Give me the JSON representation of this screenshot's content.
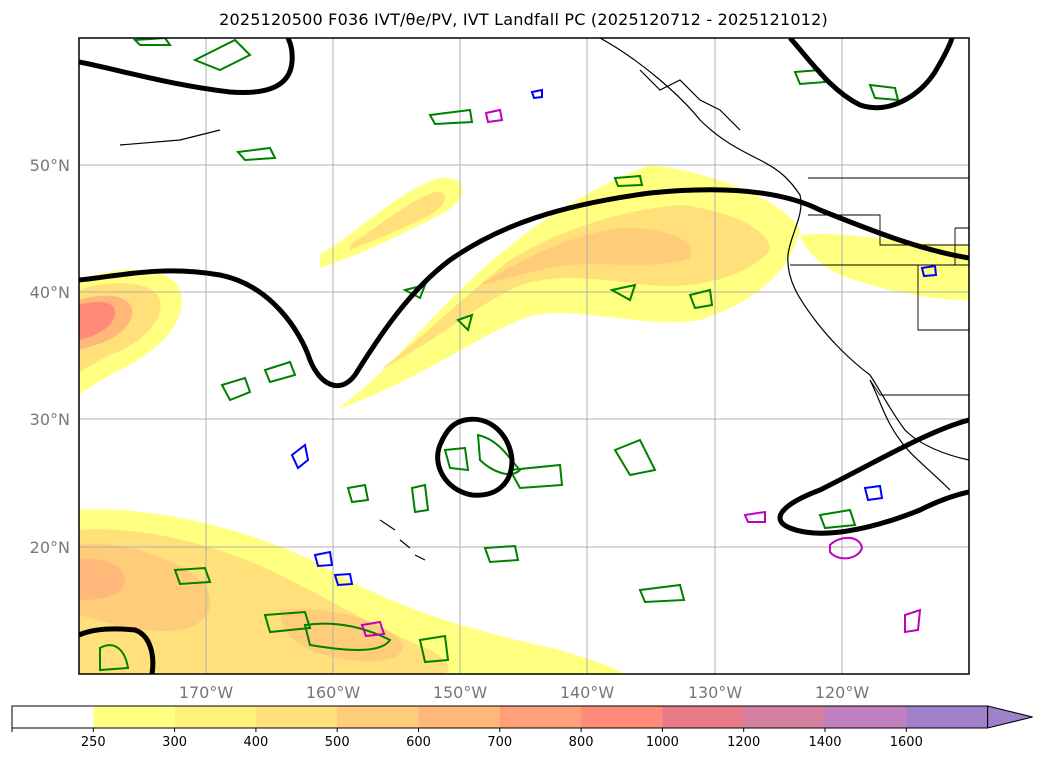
{
  "title": "2025120500 F036 IVT/θe/PV, IVT Landfall PC (2025120712 - 2025121012)",
  "latitude_labels": [
    "50°N",
    "40°N",
    "30°N",
    "20°N"
  ],
  "longitude_labels": [
    "170°W",
    "160°W",
    "150°W",
    "140°W",
    "130°W",
    "120°W"
  ],
  "colorbar": {
    "ticks": [
      "250",
      "300",
      "400",
      "500",
      "600",
      "700",
      "800",
      "1000",
      "1200",
      "1400",
      "1600"
    ],
    "colors": [
      "#ffffff",
      "#ffff80",
      "#fff27a",
      "#ffe07a",
      "#ffcc7a",
      "#ffb87a",
      "#ffa07a",
      "#ff8a7a",
      "#e87a8a",
      "#d480a0",
      "#c080c0",
      "#a080c8"
    ],
    "extend": "max"
  },
  "style": {
    "pc_contour_color": "#000000",
    "theta_contour_color": "#008000",
    "pv_contour_color_a": "#0000ff",
    "pv_contour_color_b": "#c000c0",
    "coastline_color": "#000000",
    "gridline_color": "#b0b0b0"
  }
}
